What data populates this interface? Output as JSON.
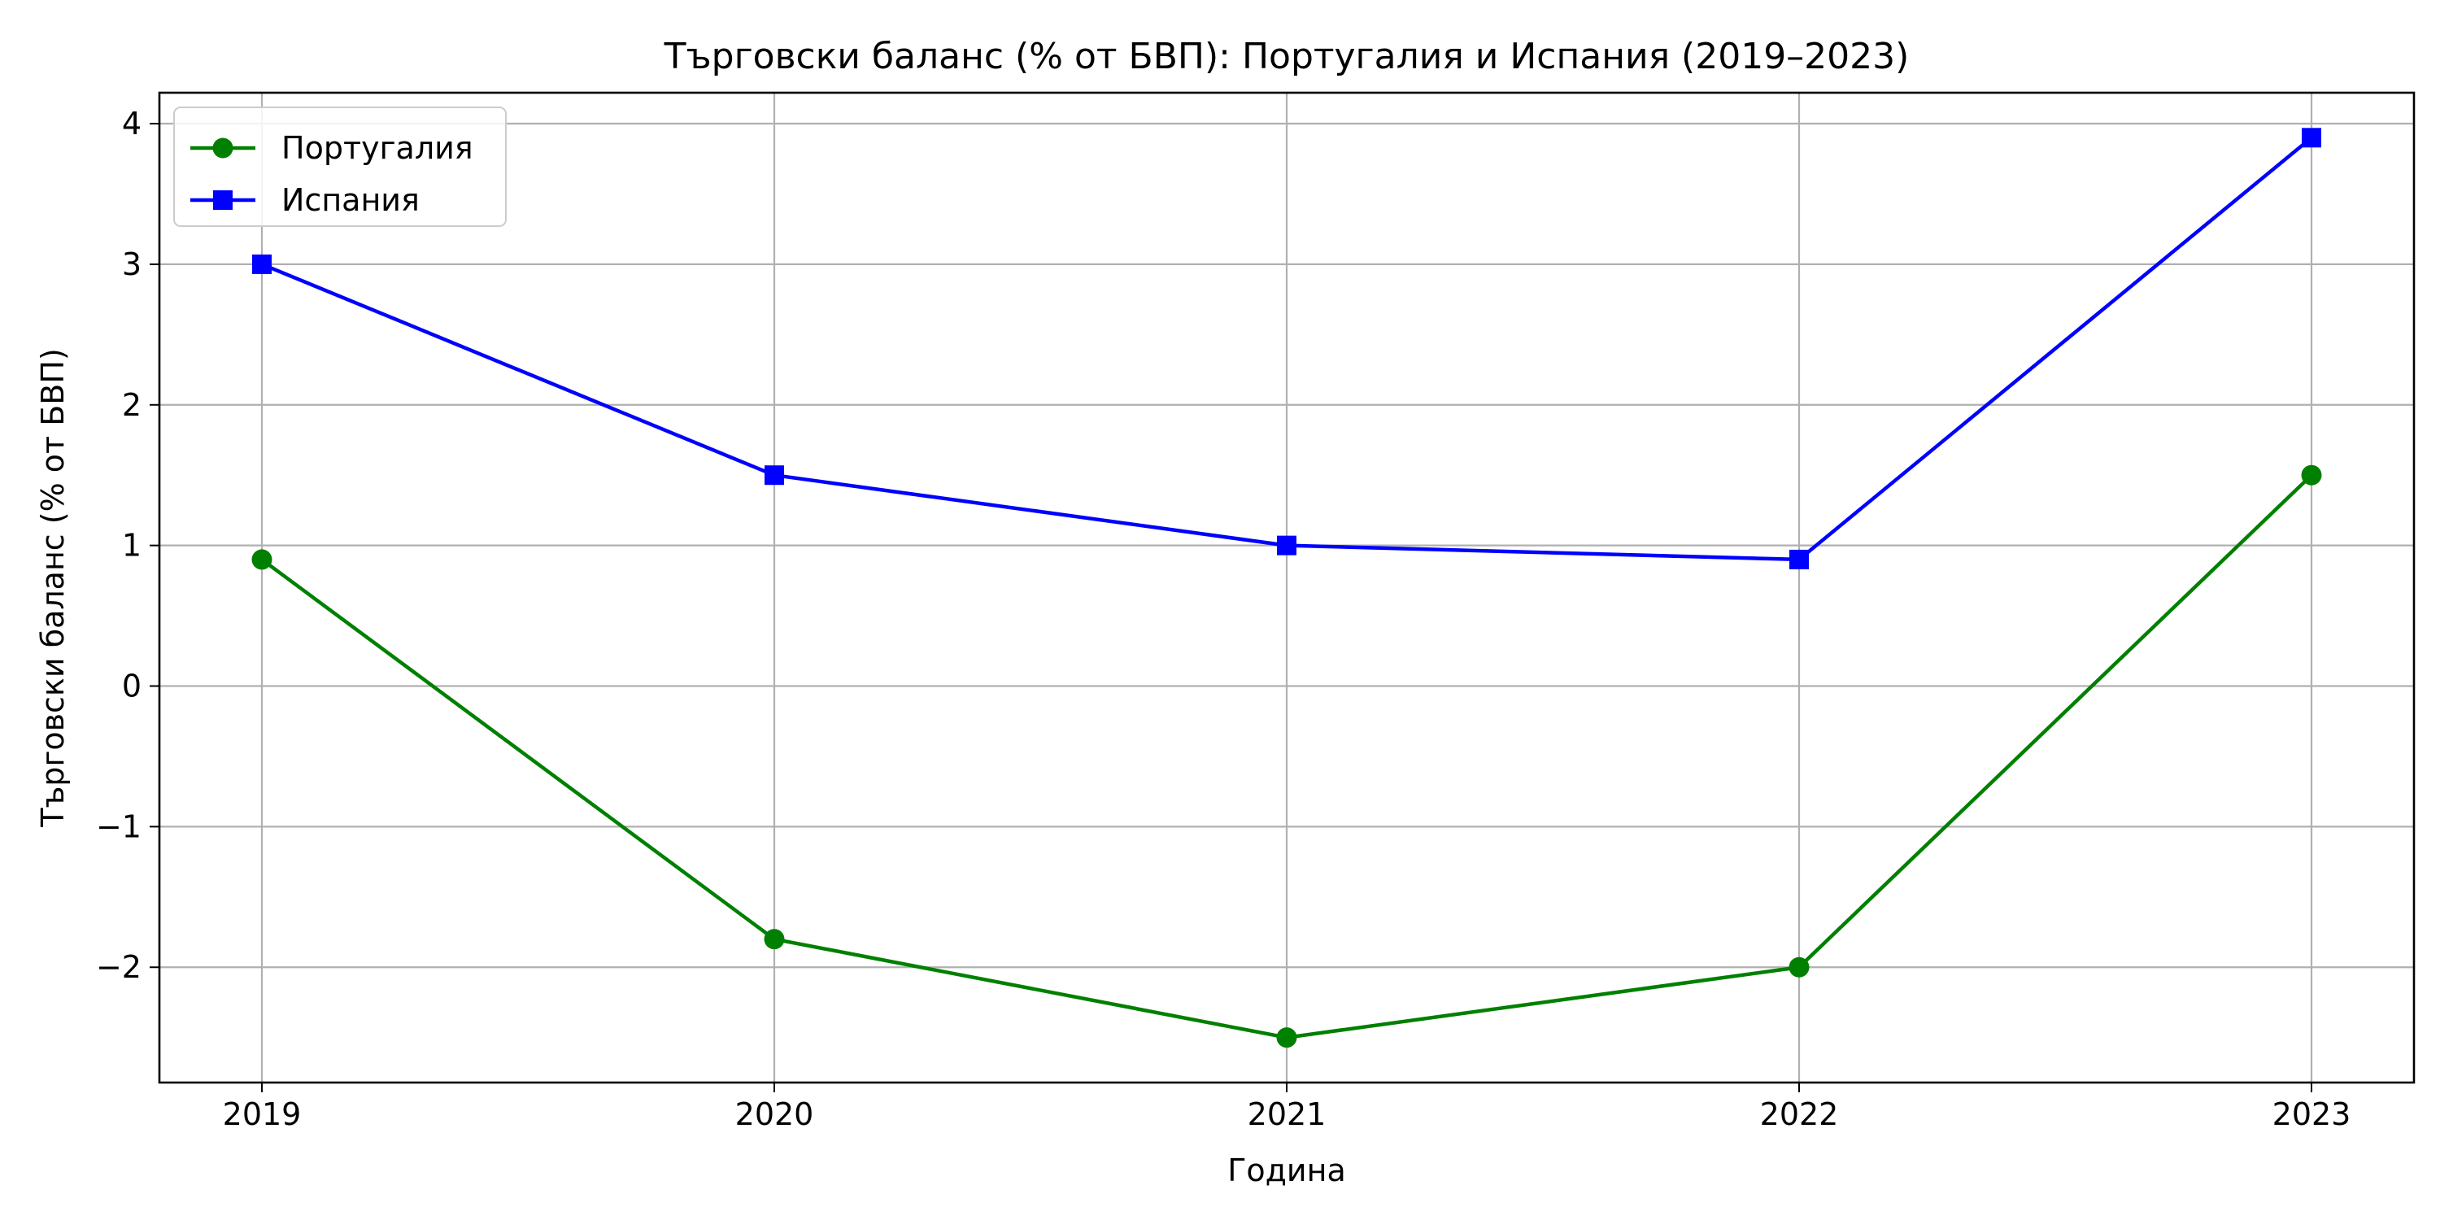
{
  "chart_data": {
    "type": "line",
    "title": "Търговски баланс (% от БВП): Португалия и Испания (2019–2023)",
    "xlabel": "Година",
    "ylabel": "Търговски баланс (% от БВП)",
    "x": [
      2019,
      2020,
      2021,
      2022,
      2023
    ],
    "xticks": [
      "2019",
      "2020",
      "2021",
      "2022",
      "2023"
    ],
    "yticks": [
      -2,
      -1,
      0,
      1,
      2,
      3,
      4
    ],
    "ytick_labels": [
      "−2",
      "−1",
      "0",
      "1",
      "2",
      "3",
      "4"
    ],
    "xlim": [
      2018.8,
      2023.2
    ],
    "ylim": [
      -2.82,
      4.22
    ],
    "grid": true,
    "legend_position": "top-left",
    "series": [
      {
        "name": "Португалия",
        "values": [
          0.9,
          -1.8,
          -2.5,
          -2.0,
          1.5
        ],
        "color": "#008000",
        "marker": "circle"
      },
      {
        "name": "Испания",
        "values": [
          3.0,
          1.5,
          1.0,
          0.9,
          3.9
        ],
        "color": "#0000ff",
        "marker": "square"
      }
    ]
  }
}
